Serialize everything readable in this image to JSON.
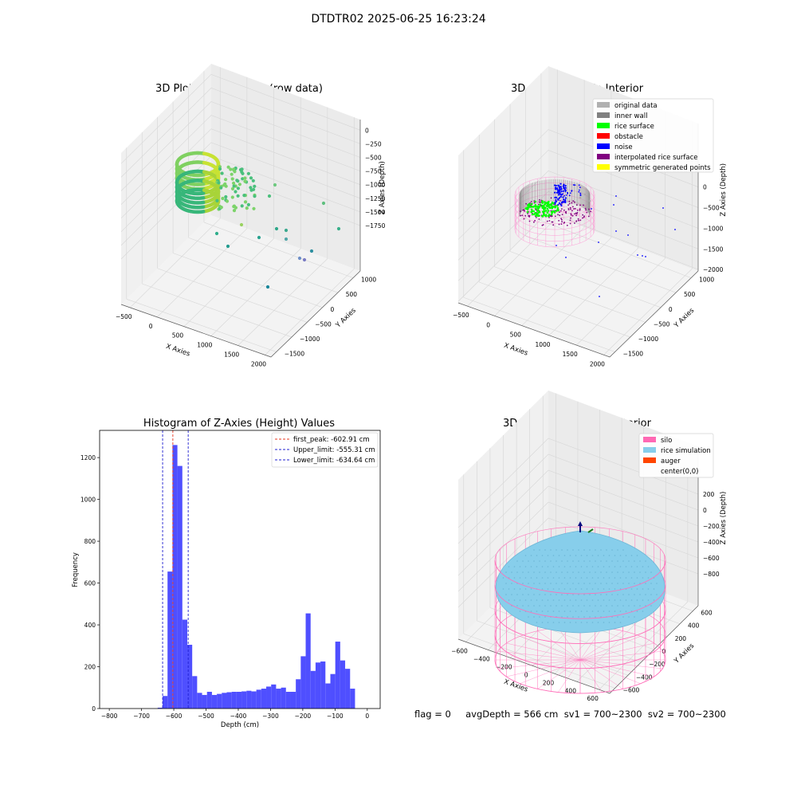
{
  "suptitle": "DTDTR02 2025-06-25 16:23:24",
  "footer": "flag = 0     avgDepth = 566 cm  sv1 = 700~2300  sv2 = 700~2300",
  "chart_data": [
    {
      "type": "scatter",
      "title": "3D Plot of Silo Interior(row data)",
      "xlabel": "X Axies",
      "ylabel": "Y Axies",
      "zlabel": "Z Axies (Depth)",
      "xticks": [
        "−500",
        "0",
        "500",
        "1000",
        "1500",
        "2000"
      ],
      "yticks": [
        "−1500",
        "−1000",
        "−500",
        "0",
        "500",
        "1000"
      ],
      "zticks": [
        "0",
        "−250",
        "−500",
        "−750",
        "−1000",
        "−1250",
        "−1500",
        "−1750"
      ],
      "legend": [],
      "outliers": [
        [
          1100,
          1000,
          -700
        ],
        [
          1500,
          0,
          -1000
        ],
        [
          900,
          -300,
          -1100
        ],
        [
          600,
          400,
          -1300
        ],
        [
          1300,
          0,
          -1500
        ],
        [
          1100,
          -200,
          -1600
        ],
        [
          1200,
          -300,
          -1700
        ],
        [
          1400,
          -800,
          -1600
        ],
        [
          1200,
          -1200,
          -1800
        ],
        [
          300,
          100,
          -1200
        ],
        [
          500,
          0,
          -1000
        ],
        [
          800,
          500,
          -600
        ]
      ]
    },
    {
      "type": "scatter",
      "title": "3D classify of Silo Interior",
      "xlabel": "X Axies",
      "ylabel": "Y Axies",
      "zlabel": "Z Axies (Depth)",
      "xticks": [
        "−500",
        "0",
        "500",
        "1000",
        "1500",
        "2000"
      ],
      "yticks": [
        "−1500",
        "−1000",
        "−500",
        "0",
        "500",
        "1000"
      ],
      "zticks": [
        "0",
        "−500",
        "−1000",
        "−1500",
        "−2000"
      ],
      "legend_position": "top-right",
      "legend": [
        {
          "label": "original data",
          "color": "#b0b0b0"
        },
        {
          "label": "inner wall",
          "color": "#808080"
        },
        {
          "label": "rice surface",
          "color": "#00ff00"
        },
        {
          "label": "obstacle",
          "color": "#ff0000"
        },
        {
          "label": "noise",
          "color": "#0000ff"
        },
        {
          "label": "interpolated rice surface",
          "color": "#800080"
        },
        {
          "label": "symmetric generated points",
          "color": "#ffff00"
        }
      ]
    },
    {
      "type": "bar",
      "title": "Histogram of Z-Axies (Height) Values",
      "xlabel": "Depth (cm)",
      "ylabel": "Frequency",
      "xlim": [
        -830,
        40
      ],
      "ylim": [
        0,
        1330
      ],
      "xticks": [
        -800,
        -700,
        -600,
        -500,
        -400,
        -300,
        -200,
        -100,
        0
      ],
      "yticks": [
        0,
        200,
        400,
        600,
        800,
        1000,
        1200
      ],
      "bin_start": -650,
      "bin_width": 15.3,
      "values": [
        4,
        60,
        655,
        1260,
        1160,
        425,
        305,
        155,
        75,
        65,
        80,
        65,
        70,
        75,
        78,
        80,
        80,
        82,
        85,
        82,
        90,
        95,
        105,
        115,
        95,
        100,
        80,
        80,
        140,
        250,
        455,
        180,
        220,
        225,
        120,
        165,
        320,
        230,
        190,
        95
      ],
      "bar_color": "#4f4fff",
      "vlines": [
        {
          "label": "first_peak: -602.91 cm",
          "x": -602.91,
          "color": "#e8341c"
        },
        {
          "label": "Upper_limit: -555.31 cm",
          "x": -555.31,
          "color": "#1f1fd0"
        },
        {
          "label": "Lower_limit: -634.64 cm",
          "x": -634.64,
          "color": "#1f1fd0"
        }
      ],
      "legend_position": "top-right"
    },
    {
      "type": "scatter",
      "title": "3D simulation of Silo Interior",
      "xlabel": "X Axies",
      "ylabel": "Y Axies",
      "zlabel": "Z Axies (Depth)",
      "xticks": [
        "−600",
        "−400",
        "−200",
        "0",
        "200",
        "400",
        "600"
      ],
      "yticks": [
        "−600",
        "−400",
        "−200",
        "0",
        "200",
        "400",
        "600"
      ],
      "zticks": [
        "200",
        "0",
        "−200",
        "−400",
        "−600",
        "−800"
      ],
      "legend_position": "top-right",
      "legend": [
        {
          "label": "silo",
          "color": "#ff69b4"
        },
        {
          "label": "rice simulation",
          "color": "#87ceeb"
        },
        {
          "label": "auger",
          "color": "#ff4500"
        },
        {
          "label": "center(0,0)",
          "color": ""
        }
      ]
    }
  ]
}
